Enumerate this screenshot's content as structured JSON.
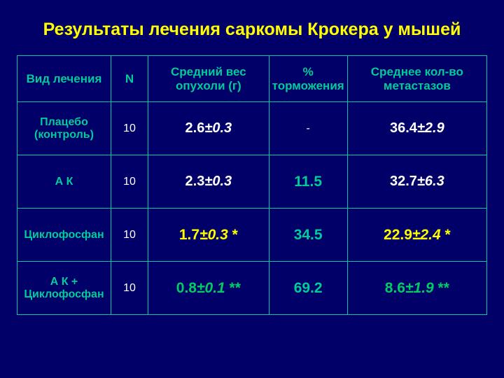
{
  "title": "Результаты лечения саркомы Крокера у мышей",
  "headers": {
    "treatment": "Вид лечения",
    "n": "N",
    "weight": "Средний вес опухоли (г)",
    "inhibition": "% торможения",
    "metastases": "Среднее кол-во метастазов"
  },
  "rows": [
    {
      "label": "Плацебо (контроль)",
      "n": "10",
      "weight_main": "2.6",
      "weight_pm": "±0.3",
      "weight_star": "",
      "weight_class": "val-white",
      "inhib": "-",
      "inhib_class": "dash",
      "met_main": "36.4",
      "met_pm": "±2.9",
      "met_star": "",
      "met_class": "val-white"
    },
    {
      "label": "А К",
      "n": "10",
      "weight_main": "2.3",
      "weight_pm": "±0.3",
      "weight_star": "",
      "weight_class": "val-white",
      "inhib": "11.5",
      "inhib_class": "val-teal",
      "met_main": "32.7",
      "met_pm": "±6.3",
      "met_star": "",
      "met_class": "val-white"
    },
    {
      "label": "Циклофосфан",
      "n": "10",
      "weight_main": "1.7",
      "weight_pm": "±0.3",
      "weight_star": "  *",
      "weight_class": "val-yellow",
      "inhib": "34.5",
      "inhib_class": "val-teal",
      "met_main": "22.9",
      "met_pm": "±2.4",
      "met_star": "  *",
      "met_class": "val-yellow"
    },
    {
      "label": "А К   + Циклофосфан",
      "n": "10",
      "weight_main": "0.8",
      "weight_pm": "±0.1",
      "weight_star": "  **",
      "weight_class": "val-green",
      "inhib": "69.2",
      "inhib_class": "val-teal",
      "met_main": "8.6",
      "met_pm": "±1.9",
      "met_star": "  **",
      "met_class": "val-green"
    }
  ],
  "styling": {
    "background": "#000068",
    "border_color": "#00cc99",
    "title_color": "#ffff00",
    "header_color": "#00cc99",
    "white": "#ffffff",
    "yellow": "#ffff00",
    "green": "#00cc66",
    "teal": "#00cc99"
  }
}
